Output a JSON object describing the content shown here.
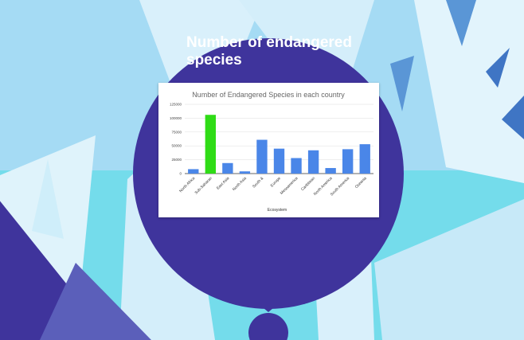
{
  "headline": "Number of endangered species",
  "colors": {
    "bubble": "#3f349c",
    "sky": "#a9dcf3",
    "bar_default": "#4a86e8",
    "bar_highlight": "#2fdc16"
  },
  "chart_data": {
    "type": "bar",
    "title": "Number of Endangered Species in each country",
    "xlabel": "Ecosystem",
    "ylabel": "",
    "ylim": [
      0,
      125000
    ],
    "yticks": [
      0,
      25000,
      50000,
      75000,
      100000,
      125000
    ],
    "ytick_labels": [
      "0",
      "25000",
      "50000",
      "75000",
      "100000",
      "125000"
    ],
    "grid": true,
    "categories": [
      "North Africa",
      "Sub-Saharan",
      "East Asia",
      "North Asia",
      "South &",
      "Europe",
      "Mesoamerica",
      "Caribbean",
      "North America",
      "South America",
      "Oceania"
    ],
    "values": [
      8000,
      106000,
      19000,
      4000,
      61000,
      45000,
      28000,
      42000,
      10000,
      44000,
      53000
    ],
    "highlight_index": 1
  }
}
